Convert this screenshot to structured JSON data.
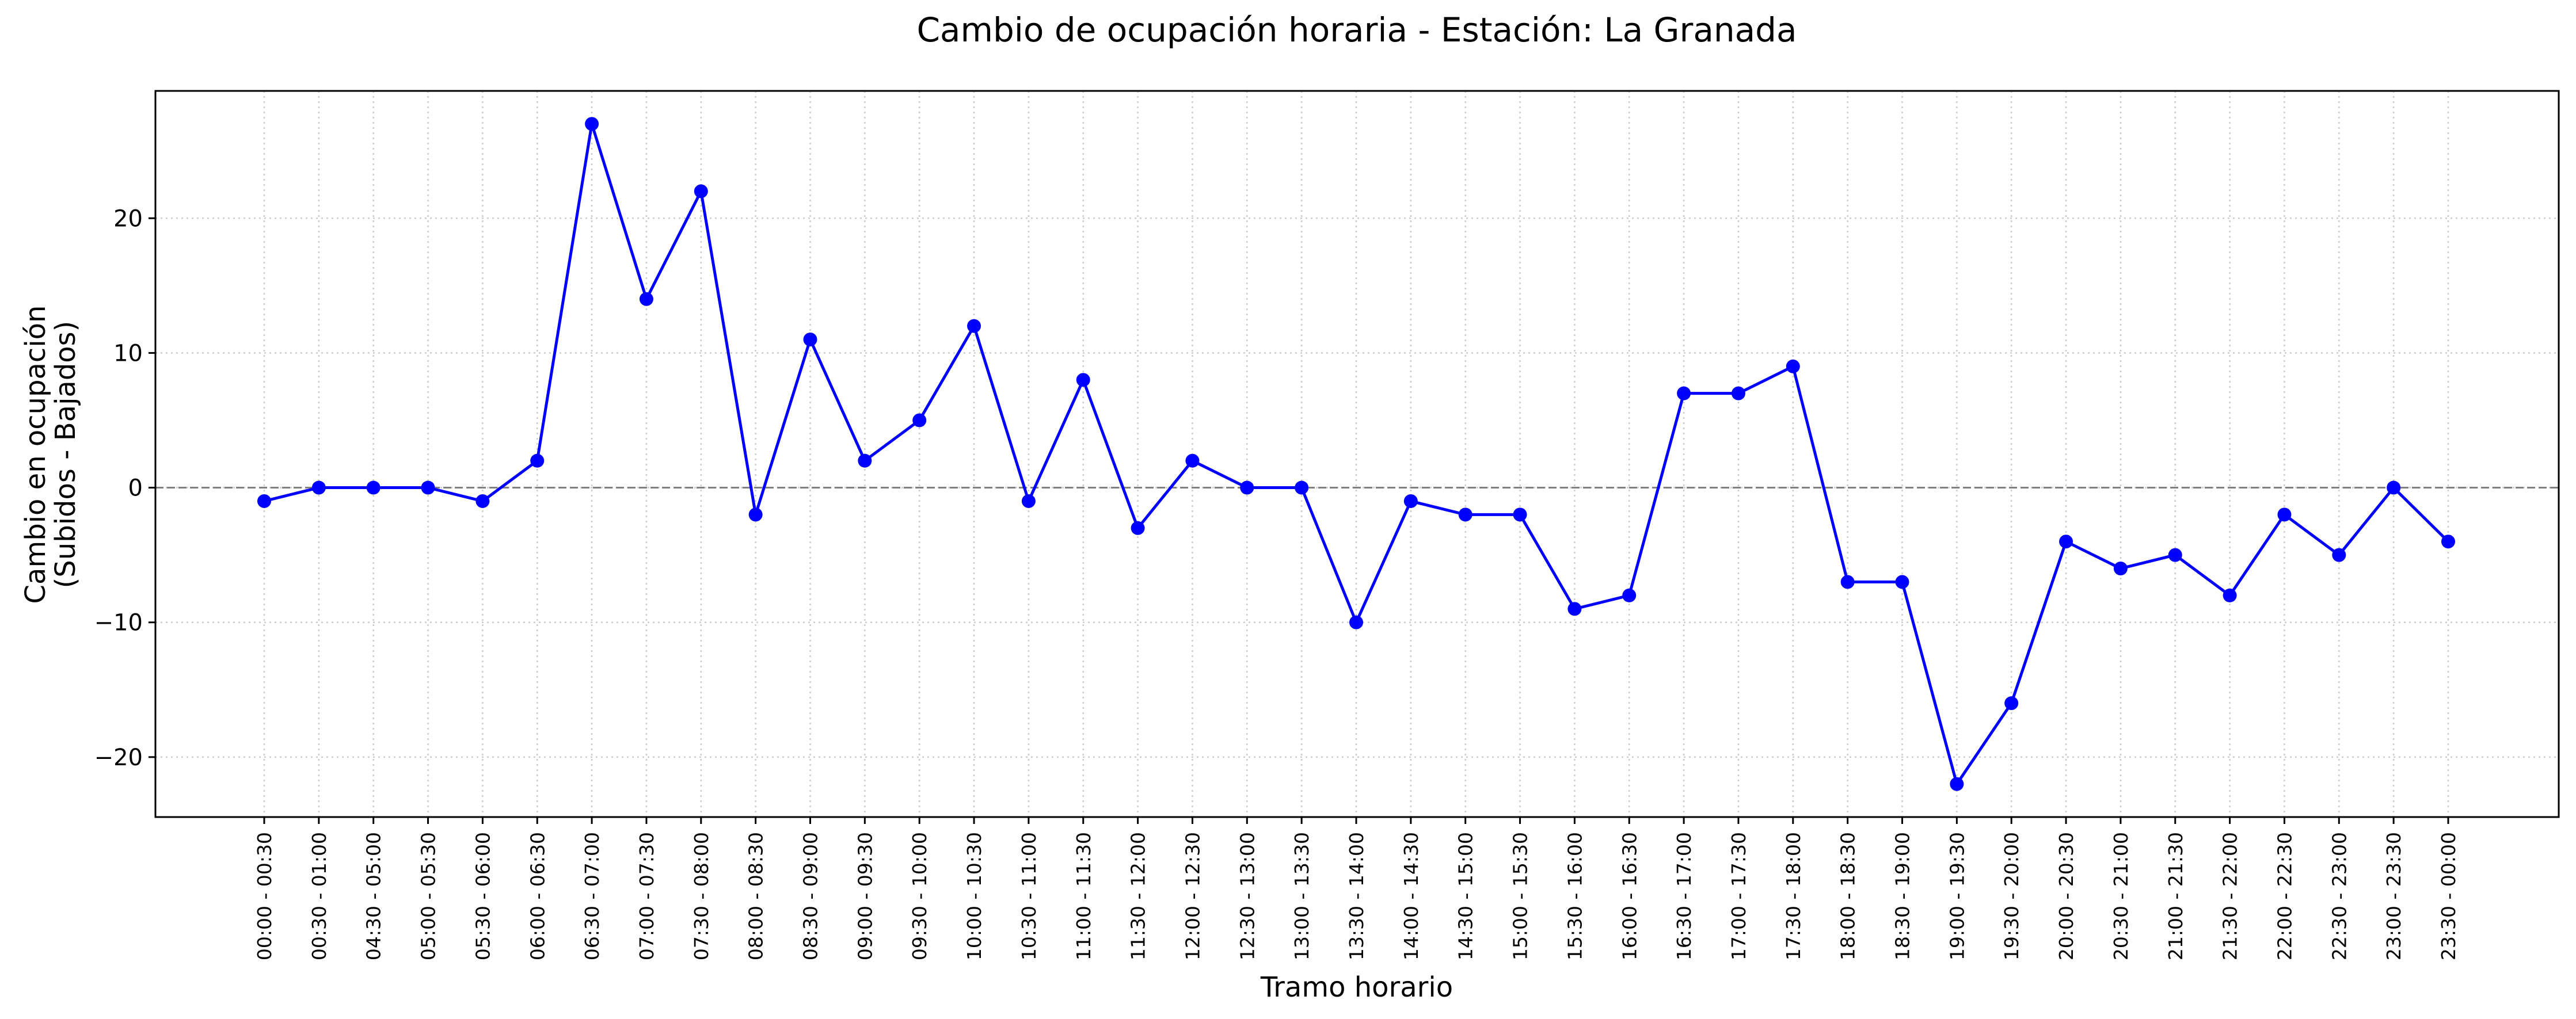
{
  "chart_data": {
    "type": "line",
    "title": "Cambio de ocupación horaria - Estación: La Granada",
    "xlabel": "Tramo horario",
    "ylabel_lines": [
      "Cambio en ocupación",
      "(Subidos - Bajados)"
    ],
    "categories": [
      "00:00 - 00:30",
      "00:30 - 01:00",
      "04:30 - 05:00",
      "05:00 - 05:30",
      "05:30 - 06:00",
      "06:00 - 06:30",
      "06:30 - 07:00",
      "07:00 - 07:30",
      "07:30 - 08:00",
      "08:00 - 08:30",
      "08:30 - 09:00",
      "09:00 - 09:30",
      "09:30 - 10:00",
      "10:00 - 10:30",
      "10:30 - 11:00",
      "11:00 - 11:30",
      "11:30 - 12:00",
      "12:00 - 12:30",
      "12:30 - 13:00",
      "13:00 - 13:30",
      "13:30 - 14:00",
      "14:00 - 14:30",
      "14:30 - 15:00",
      "15:00 - 15:30",
      "15:30 - 16:00",
      "16:00 - 16:30",
      "16:30 - 17:00",
      "17:00 - 17:30",
      "17:30 - 18:00",
      "18:00 - 18:30",
      "18:30 - 19:00",
      "19:00 - 19:30",
      "19:30 - 20:00",
      "20:00 - 20:30",
      "20:30 - 21:00",
      "21:00 - 21:30",
      "21:30 - 22:00",
      "22:00 - 22:30",
      "22:30 - 23:00",
      "23:00 - 23:30",
      "23:30 - 00:00"
    ],
    "values": [
      -1,
      0,
      0,
      0,
      -1,
      2,
      27,
      14,
      22,
      -2,
      11,
      2,
      5,
      12,
      -1,
      8,
      -3,
      2,
      0,
      0,
      -10,
      -1,
      -2,
      -2,
      -9,
      -8,
      7,
      7,
      9,
      -7,
      -7,
      -22,
      -16,
      -4,
      -6,
      -5,
      -8,
      -2,
      -5,
      0,
      -4
    ],
    "ylim": [
      -24.45,
      29.45
    ],
    "yticks": [
      -20,
      -10,
      0,
      10,
      20
    ],
    "ytick_labels": [
      "−20",
      "−10",
      "0",
      "10",
      "20"
    ],
    "reference_line_y": 0,
    "grid": true,
    "colors": {
      "series": "#0000ff",
      "reference_line": "#808080",
      "grid": "#cccccc"
    }
  }
}
